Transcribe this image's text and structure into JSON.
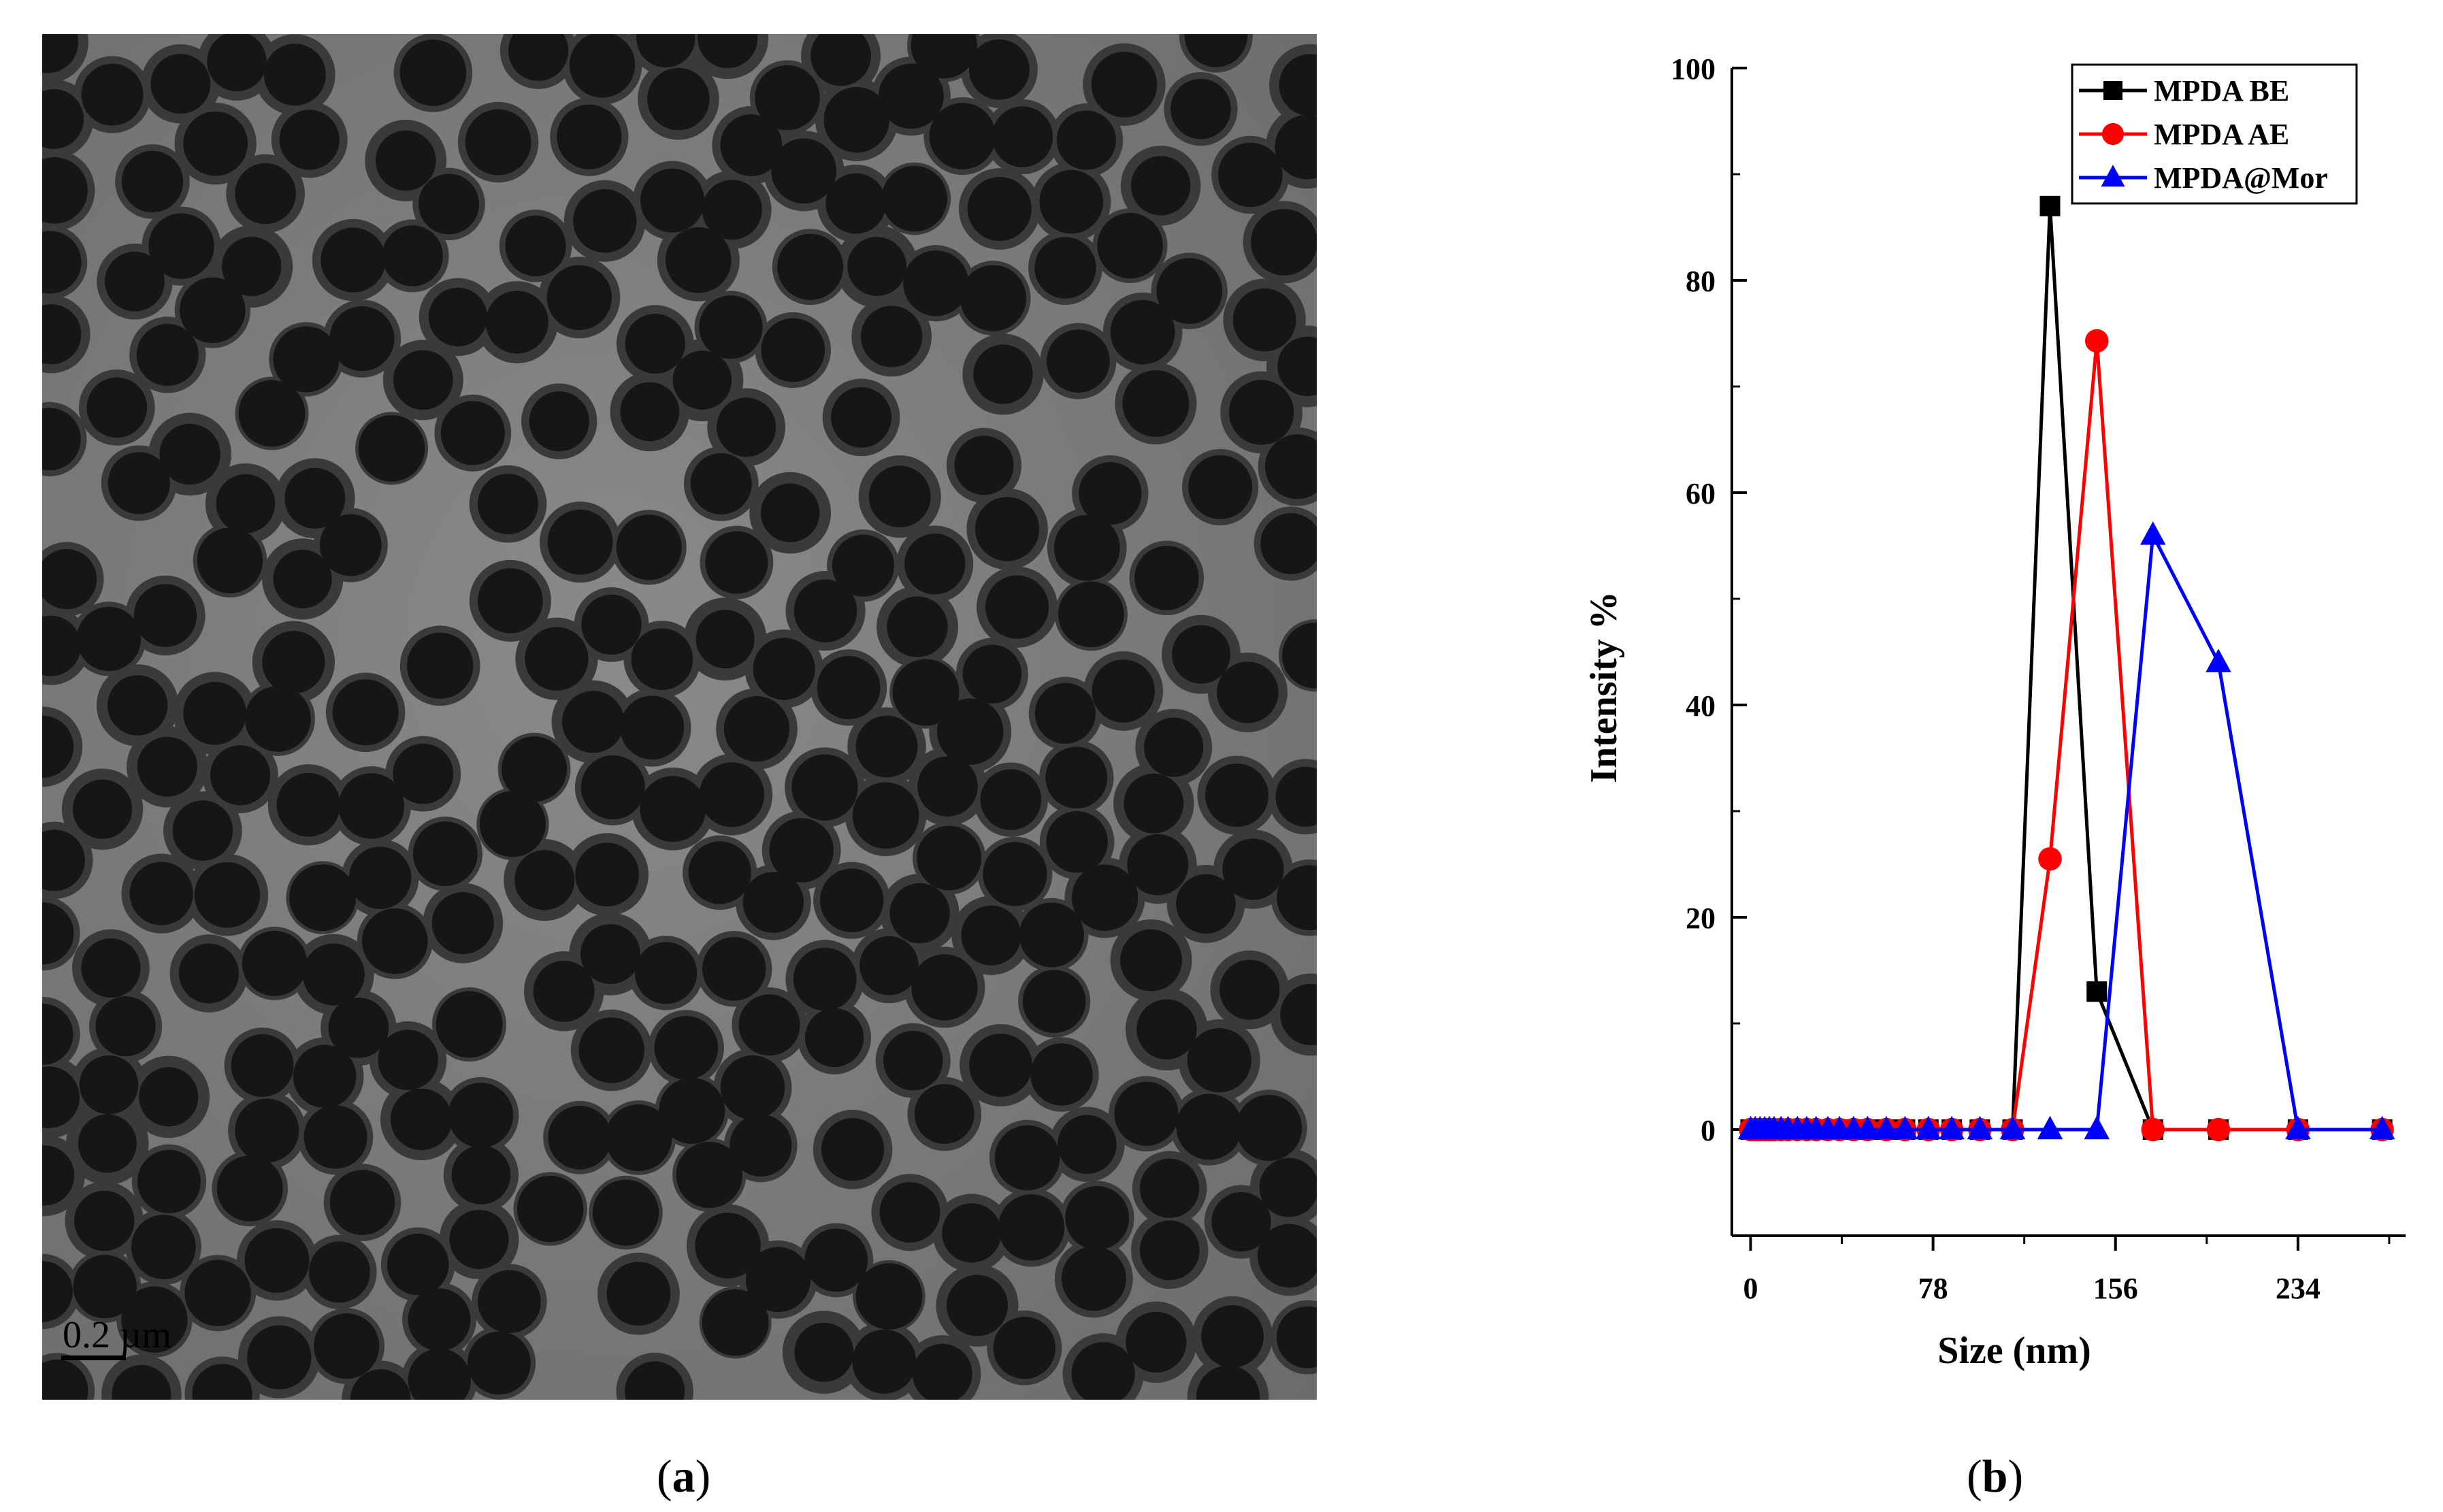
{
  "panel_a": {
    "scale_bar_label": "0.2 µm",
    "caption_open": "(",
    "caption_letter": "a",
    "caption_close": ")"
  },
  "panel_b": {
    "caption_open": "(",
    "caption_letter": "b",
    "caption_close": ")"
  },
  "chart_data": {
    "type": "line",
    "xlabel": "Size (nm)",
    "ylabel": "Intensity %",
    "xlim": [
      -8,
      280
    ],
    "ylim": [
      -10,
      100
    ],
    "xticks": [
      0,
      78,
      156,
      234
    ],
    "yticks": [
      0,
      20,
      40,
      60,
      80,
      100
    ],
    "grid": false,
    "legend_position": "top-right",
    "series": [
      {
        "name": "MPDA BE",
        "color": "#000000",
        "marker": "square",
        "x": [
          0,
          2,
          4,
          6,
          8,
          10,
          13,
          16,
          20,
          24,
          28,
          33,
          38,
          44,
          50,
          58,
          66,
          76,
          86,
          98,
          112,
          128,
          148,
          172,
          200,
          234,
          270
        ],
        "y": [
          0,
          0,
          0,
          0,
          0,
          0,
          0,
          0,
          0,
          0,
          0,
          0,
          0,
          0,
          0,
          0,
          0,
          0,
          0,
          0,
          0,
          87,
          13,
          0,
          0,
          0,
          0
        ]
      },
      {
        "name": "MPDA AE",
        "color": "#ff0000",
        "marker": "circle",
        "x": [
          0,
          2,
          4,
          6,
          8,
          10,
          13,
          16,
          20,
          24,
          28,
          33,
          38,
          44,
          50,
          58,
          66,
          76,
          86,
          98,
          112,
          128,
          148,
          172,
          200,
          234,
          270
        ],
        "y": [
          0,
          0,
          0,
          0,
          0,
          0,
          0,
          0,
          0,
          0,
          0,
          0,
          0,
          0,
          0,
          0,
          0,
          0,
          0,
          0,
          0,
          25.5,
          74.3,
          0,
          0,
          0,
          0
        ]
      },
      {
        "name": "MPDA@Mor",
        "color": "#0000ff",
        "marker": "triangle",
        "x": [
          0,
          2,
          4,
          6,
          8,
          10,
          13,
          16,
          20,
          24,
          28,
          33,
          38,
          44,
          50,
          58,
          66,
          76,
          86,
          98,
          112,
          128,
          148,
          172,
          200,
          234,
          270
        ],
        "y": [
          0,
          0,
          0,
          0,
          0,
          0,
          0,
          0,
          0,
          0,
          0,
          0,
          0,
          0,
          0,
          0,
          0,
          0,
          0,
          0,
          0,
          0,
          0,
          56,
          44,
          0,
          0
        ]
      }
    ]
  }
}
